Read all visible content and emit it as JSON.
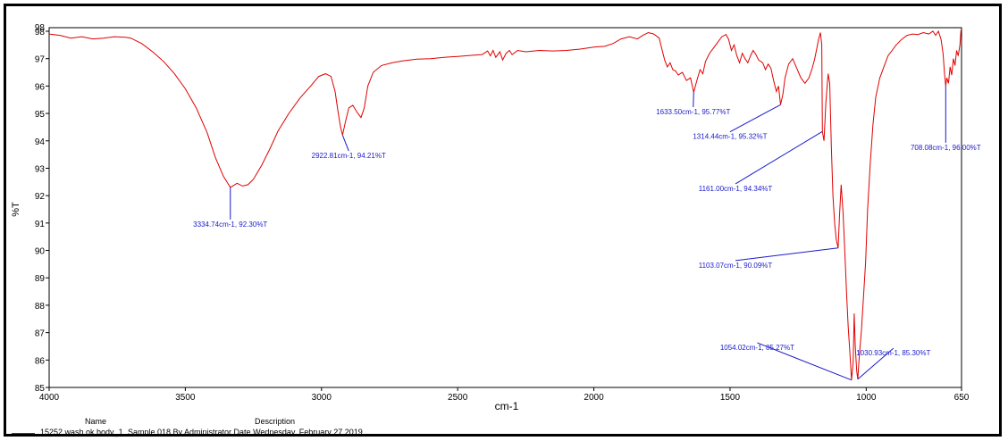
{
  "chart_data": {
    "type": "line",
    "ylabel": "%T",
    "xlabel": "cm-1",
    "xlim": [
      4000,
      650
    ],
    "ylim": [
      85,
      98
    ],
    "x_ticks": [
      4000,
      3500,
      3000,
      2500,
      2000,
      1500,
      1000,
      650
    ],
    "y_ticks": [
      85,
      86,
      87,
      88,
      89,
      90,
      91,
      92,
      93,
      94,
      95,
      96,
      97,
      98
    ],
    "y_top_label": "98",
    "line_color": "#e00000",
    "annotation_color": "#1a1acc",
    "series": [
      {
        "name": "15252 wash ok body_1",
        "points": [
          [
            4000,
            97.9
          ],
          [
            3960,
            97.85
          ],
          [
            3920,
            97.75
          ],
          [
            3880,
            97.8
          ],
          [
            3840,
            97.72
          ],
          [
            3800,
            97.75
          ],
          [
            3760,
            97.8
          ],
          [
            3720,
            97.78
          ],
          [
            3700,
            97.75
          ],
          [
            3660,
            97.55
          ],
          [
            3620,
            97.25
          ],
          [
            3580,
            96.9
          ],
          [
            3540,
            96.45
          ],
          [
            3500,
            95.9
          ],
          [
            3460,
            95.2
          ],
          [
            3420,
            94.3
          ],
          [
            3390,
            93.4
          ],
          [
            3360,
            92.7
          ],
          [
            3334.74,
            92.3
          ],
          [
            3310,
            92.45
          ],
          [
            3290,
            92.35
          ],
          [
            3270,
            92.4
          ],
          [
            3250,
            92.6
          ],
          [
            3220,
            93.1
          ],
          [
            3190,
            93.7
          ],
          [
            3160,
            94.35
          ],
          [
            3120,
            95.0
          ],
          [
            3080,
            95.55
          ],
          [
            3040,
            96.0
          ],
          [
            3010,
            96.35
          ],
          [
            2985,
            96.45
          ],
          [
            2965,
            96.35
          ],
          [
            2950,
            95.8
          ],
          [
            2940,
            95.1
          ],
          [
            2930,
            94.5
          ],
          [
            2922.81,
            94.21
          ],
          [
            2912,
            94.7
          ],
          [
            2900,
            95.2
          ],
          [
            2885,
            95.3
          ],
          [
            2870,
            95.05
          ],
          [
            2855,
            94.85
          ],
          [
            2843,
            95.2
          ],
          [
            2830,
            96.0
          ],
          [
            2810,
            96.5
          ],
          [
            2780,
            96.75
          ],
          [
            2740,
            96.85
          ],
          [
            2700,
            96.92
          ],
          [
            2650,
            96.98
          ],
          [
            2600,
            97.0
          ],
          [
            2550,
            97.05
          ],
          [
            2500,
            97.08
          ],
          [
            2450,
            97.12
          ],
          [
            2410,
            97.15
          ],
          [
            2390,
            97.28
          ],
          [
            2380,
            97.1
          ],
          [
            2370,
            97.3
          ],
          [
            2360,
            97.05
          ],
          [
            2345,
            97.25
          ],
          [
            2335,
            96.95
          ],
          [
            2322,
            97.2
          ],
          [
            2310,
            97.3
          ],
          [
            2300,
            97.15
          ],
          [
            2280,
            97.3
          ],
          [
            2250,
            97.25
          ],
          [
            2200,
            97.3
          ],
          [
            2150,
            97.28
          ],
          [
            2100,
            97.3
          ],
          [
            2050,
            97.35
          ],
          [
            2000,
            97.42
          ],
          [
            1960,
            97.45
          ],
          [
            1930,
            97.55
          ],
          [
            1900,
            97.72
          ],
          [
            1870,
            97.8
          ],
          [
            1840,
            97.72
          ],
          [
            1820,
            97.85
          ],
          [
            1800,
            97.95
          ],
          [
            1780,
            97.9
          ],
          [
            1760,
            97.75
          ],
          [
            1750,
            97.35
          ],
          [
            1740,
            96.95
          ],
          [
            1730,
            96.7
          ],
          [
            1720,
            96.85
          ],
          [
            1710,
            96.6
          ],
          [
            1700,
            96.55
          ],
          [
            1690,
            96.4
          ],
          [
            1675,
            96.5
          ],
          [
            1660,
            96.2
          ],
          [
            1645,
            96.3
          ],
          [
            1633.5,
            95.77
          ],
          [
            1622,
            96.2
          ],
          [
            1610,
            96.6
          ],
          [
            1600,
            96.45
          ],
          [
            1590,
            96.9
          ],
          [
            1575,
            97.2
          ],
          [
            1560,
            97.4
          ],
          [
            1545,
            97.6
          ],
          [
            1530,
            97.8
          ],
          [
            1515,
            97.88
          ],
          [
            1505,
            97.7
          ],
          [
            1495,
            97.3
          ],
          [
            1485,
            97.5
          ],
          [
            1475,
            97.1
          ],
          [
            1465,
            96.85
          ],
          [
            1455,
            97.2
          ],
          [
            1445,
            97.0
          ],
          [
            1435,
            96.85
          ],
          [
            1425,
            97.1
          ],
          [
            1415,
            97.3
          ],
          [
            1405,
            97.15
          ],
          [
            1395,
            96.95
          ],
          [
            1380,
            96.85
          ],
          [
            1370,
            96.6
          ],
          [
            1360,
            96.8
          ],
          [
            1350,
            96.65
          ],
          [
            1340,
            96.2
          ],
          [
            1330,
            95.8
          ],
          [
            1322,
            96.0
          ],
          [
            1314.44,
            95.32
          ],
          [
            1306,
            95.7
          ],
          [
            1298,
            96.3
          ],
          [
            1285,
            96.8
          ],
          [
            1270,
            97.0
          ],
          [
            1255,
            96.65
          ],
          [
            1240,
            96.3
          ],
          [
            1225,
            96.1
          ],
          [
            1210,
            96.3
          ],
          [
            1200,
            96.6
          ],
          [
            1190,
            96.95
          ],
          [
            1182,
            97.35
          ],
          [
            1175,
            97.7
          ],
          [
            1168,
            97.95
          ],
          [
            1163,
            97.5
          ],
          [
            1161,
            94.34
          ],
          [
            1155,
            94.0
          ],
          [
            1148,
            95.4
          ],
          [
            1140,
            96.45
          ],
          [
            1134,
            96.1
          ],
          [
            1128,
            93.8
          ],
          [
            1122,
            92.0
          ],
          [
            1116,
            91.0
          ],
          [
            1110,
            90.4
          ],
          [
            1103.07,
            90.09
          ],
          [
            1098,
            91.3
          ],
          [
            1092,
            92.4
          ],
          [
            1085,
            91.4
          ],
          [
            1078,
            89.8
          ],
          [
            1072,
            88.4
          ],
          [
            1066,
            87.2
          ],
          [
            1060,
            86.3
          ],
          [
            1054.02,
            85.27
          ],
          [
            1048,
            85.9
          ],
          [
            1044,
            87.7
          ],
          [
            1040,
            86.5
          ],
          [
            1035,
            85.6
          ],
          [
            1030.93,
            85.3
          ],
          [
            1025,
            86.2
          ],
          [
            1018,
            87.0
          ],
          [
            1010,
            88.3
          ],
          [
            1002,
            89.6
          ],
          [
            995,
            91.5
          ],
          [
            985,
            93.2
          ],
          [
            975,
            94.6
          ],
          [
            965,
            95.6
          ],
          [
            950,
            96.3
          ],
          [
            935,
            96.7
          ],
          [
            920,
            97.1
          ],
          [
            905,
            97.3
          ],
          [
            890,
            97.5
          ],
          [
            870,
            97.7
          ],
          [
            850,
            97.85
          ],
          [
            830,
            97.9
          ],
          [
            810,
            97.88
          ],
          [
            790,
            97.95
          ],
          [
            770,
            97.9
          ],
          [
            755,
            98.0
          ],
          [
            745,
            97.85
          ],
          [
            735,
            98.0
          ],
          [
            725,
            97.7
          ],
          [
            718,
            97.2
          ],
          [
            712,
            96.4
          ],
          [
            708.08,
            96.0
          ],
          [
            704,
            96.3
          ],
          [
            698,
            96.1
          ],
          [
            692,
            96.7
          ],
          [
            686,
            96.4
          ],
          [
            680,
            97.0
          ],
          [
            674,
            96.75
          ],
          [
            668,
            97.3
          ],
          [
            662,
            97.1
          ],
          [
            656,
            97.5
          ],
          [
            652,
            98.05
          ],
          [
            650,
            98.0
          ]
        ]
      }
    ],
    "annotations": [
      {
        "label": "3334.74cm-1, 92.30%T",
        "x": 3334.74,
        "y": 92.3,
        "text_x": 3334.74,
        "text_y": 91.0
      },
      {
        "label": "2922.81cm-1, 94.21%T",
        "x": 2922.81,
        "y": 94.21,
        "text_x": 2900,
        "text_y": 93.5
      },
      {
        "label": "1633.50cm-1, 95.77%T",
        "x": 1633.5,
        "y": 95.77,
        "text_x": 1635,
        "text_y": 95.1
      },
      {
        "label": "1314.44cm-1, 95.32%T",
        "x": 1314.44,
        "y": 95.32,
        "text_x": 1500,
        "text_y": 94.2
      },
      {
        "label": "1161.00cm-1, 94.34%T",
        "x": 1161.0,
        "y": 94.34,
        "text_x": 1480,
        "text_y": 92.3
      },
      {
        "label": "1103.07cm-1, 90.09%T",
        "x": 1103.07,
        "y": 90.09,
        "text_x": 1480,
        "text_y": 89.5
      },
      {
        "label": "1054.02cm-1, 85.27%T",
        "x": 1054.02,
        "y": 85.27,
        "text_x": 1400,
        "text_y": 86.5
      },
      {
        "label": "1030.93cm-1, 85.30%T",
        "x": 1030.93,
        "y": 85.3,
        "text_x": 900,
        "text_y": 86.3
      },
      {
        "label": "708.08cm-1, 96.00%T",
        "x": 708.08,
        "y": 96.0,
        "text_x": 708,
        "text_y": 93.8
      }
    ]
  },
  "legend": {
    "name_header": "Name",
    "description_header": "Description",
    "sample_name": "15252 wash ok body_1",
    "sample_description": "Sample 018 By Administrator Date Wednesday, February 27 2019"
  }
}
